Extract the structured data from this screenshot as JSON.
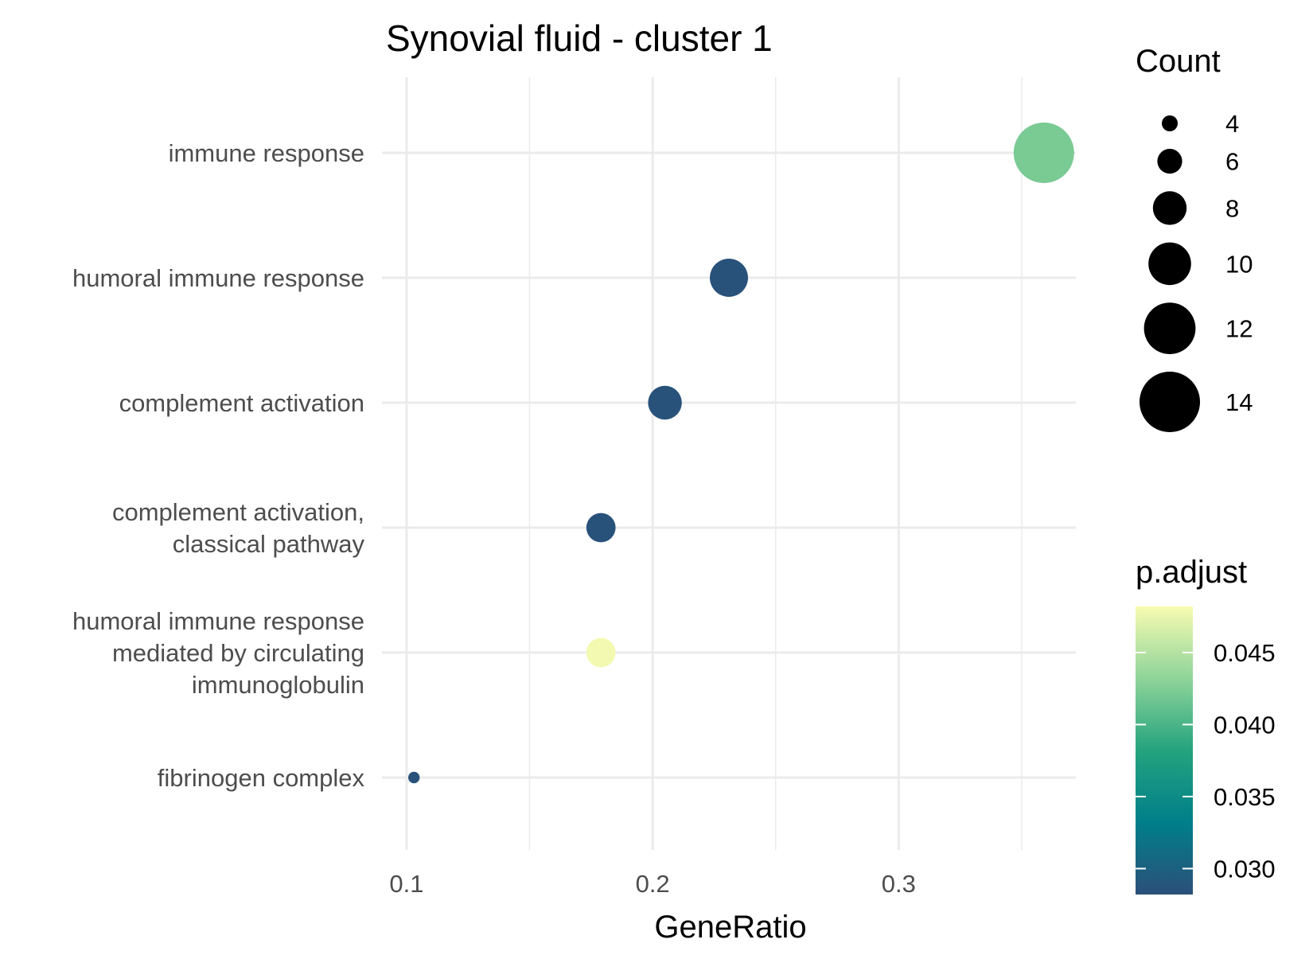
{
  "chart_data": {
    "type": "scatter",
    "title": "Synovial fluid - cluster 1",
    "xlabel": "GeneRatio",
    "ylabel": "",
    "xlim": [
      0.09,
      0.372
    ],
    "x_ticks": [
      0.1,
      0.2,
      0.3
    ],
    "x_tick_labels": [
      "0.1",
      "0.2",
      "0.3"
    ],
    "grid": true,
    "categories": [
      "immune response",
      "humoral immune response",
      "complement activation",
      "complement activation,\nclassical pathway",
      "humoral immune response\nmediated by circulating\nimmunoglobulin",
      "fibrinogen complex"
    ],
    "points": [
      {
        "term": "immune response",
        "GeneRatio": 0.359,
        "Count": 14,
        "p_adjust": 0.0422
      },
      {
        "term": "humoral immune response",
        "GeneRatio": 0.231,
        "Count": 9,
        "p_adjust": 0.0285
      },
      {
        "term": "complement activation",
        "GeneRatio": 0.205,
        "Count": 8,
        "p_adjust": 0.0285
      },
      {
        "term": "complement activation, classical pathway",
        "GeneRatio": 0.179,
        "Count": 7,
        "p_adjust": 0.0285
      },
      {
        "term": "humoral immune response mediated by circulating immunoglobulin",
        "GeneRatio": 0.179,
        "Count": 7,
        "p_adjust": 0.048
      },
      {
        "term": "fibrinogen complex",
        "GeneRatio": 0.103,
        "Count": 3,
        "p_adjust": 0.0285
      }
    ],
    "size_legend": {
      "title": "Count",
      "values": [
        4,
        6,
        8,
        10,
        12,
        14
      ],
      "labels": [
        "4",
        "6",
        "8",
        "10",
        "12",
        "14"
      ]
    },
    "color_legend": {
      "title": "p.adjust",
      "range": [
        0.0282,
        0.0482
      ],
      "ticks": [
        0.03,
        0.035,
        0.04,
        0.045
      ],
      "tick_labels": [
        "0.030",
        "0.035",
        "0.040",
        "0.045"
      ],
      "colors": [
        "#2c4f7a",
        "#007f8a",
        "#24a37e",
        "#8fd49a",
        "#f7fbb1"
      ]
    },
    "legend_position": "right"
  }
}
